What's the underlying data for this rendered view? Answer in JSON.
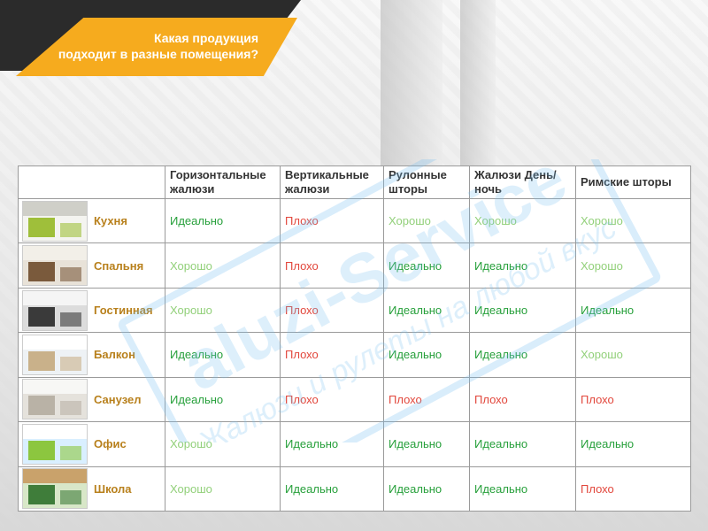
{
  "header": {
    "title_line1": "Какая продукция",
    "title_line2": "подходит в разные помещения?"
  },
  "watermark": {
    "brand": "aluzi-Service",
    "tagline": "Жалюзи и рулеты на любой вкус"
  },
  "colors": {
    "accent": "#f6ab1e",
    "dark": "#2b2b2b",
    "ideal": "#27a03b",
    "good": "#92d07a",
    "bad": "#e2473c",
    "room_label": "#b8801c"
  },
  "table": {
    "columns": [
      "Горизонтальные жалюзи",
      "Вертикальные жалюзи",
      "Рулонные шторы",
      "Жалюзи День/ночь",
      "Римские шторы"
    ],
    "rows": [
      {
        "room": "Кухня",
        "thumb_icon": "kitchen-photo",
        "ratings": [
          "Идеально",
          "Плохо",
          "Хорошо",
          "Хорошо",
          "Хорошо"
        ]
      },
      {
        "room": "Спальня",
        "thumb_icon": "bedroom-photo",
        "ratings": [
          "Хорошо",
          "Плохо",
          "Идеально",
          "Идеально",
          "Хорошо"
        ]
      },
      {
        "room": "Гостинная",
        "thumb_icon": "living-room-photo",
        "ratings": [
          "Хорошо",
          "Плохо",
          "Идеально",
          "Идеально",
          "Идеально"
        ]
      },
      {
        "room": "Балкон",
        "thumb_icon": "balcony-photo",
        "ratings": [
          "Идеально",
          "Плохо",
          "Идеально",
          "Идеально",
          "Хорошо"
        ]
      },
      {
        "room": "Санузел",
        "thumb_icon": "bathroom-photo",
        "ratings": [
          "Идеально",
          "Плохо",
          "Плохо",
          "Плохо",
          "Плохо"
        ]
      },
      {
        "room": "Офис",
        "thumb_icon": "office-photo",
        "ratings": [
          "Хорошо",
          "Идеально",
          "Идеально",
          "Идеально",
          "Идеально"
        ]
      },
      {
        "room": "Школа",
        "thumb_icon": "classroom-photo",
        "ratings": [
          "Хорошо",
          "Идеально",
          "Идеально",
          "Идеально",
          "Плохо"
        ]
      }
    ]
  }
}
